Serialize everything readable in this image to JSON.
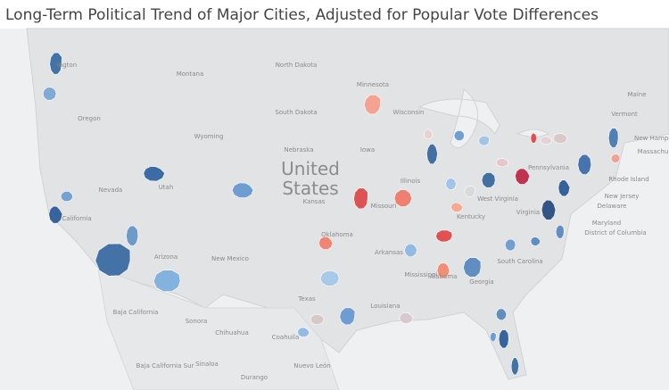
{
  "title": "Long-Term Political Trend of Major Cities, Adjusted for Popular Vote Differences",
  "country_label": "United States",
  "labels": [
    "ington",
    "Montana",
    "North Dakota",
    "South Dakota",
    "Minnesota",
    "Wisconsin",
    "Wyoming",
    "Nebraska",
    "Iowa",
    "Oregon",
    "Nevada",
    "Utah",
    "California",
    "Kansas",
    "Missouri",
    "Illinois",
    "Arizona",
    "New Mexico",
    "Oklahoma",
    "Arkansas",
    "Texas",
    "Mississippi",
    "Alabama",
    "Georgia",
    "Louisiana",
    "South Carolina",
    "Kentucky",
    "West Virginia",
    "Pennsylvania",
    "Virginia",
    "Vermont",
    "Maine",
    "New Hamps",
    "Massachu",
    "Rhode Island",
    "New Jersey",
    "Delaware",
    "Maryland",
    "District of Columbia",
    "Baja California",
    "Sonora",
    "Chihuahua",
    "Coahuila",
    "Nuevo León",
    "Sinaloa",
    "Durango",
    "Baja California Sur"
  ],
  "cities": [
    {
      "color": "#3a6ea5"
    },
    {
      "color": "#7aa7d6"
    },
    {
      "color": "#2e5e96"
    },
    {
      "color": "#6f9fd0"
    },
    {
      "color": "#3d6da3"
    },
    {
      "color": "#6897c9"
    },
    {
      "color": "#3565a0"
    },
    {
      "color": "#6a9ad0"
    },
    {
      "color": "#7fb0df"
    },
    {
      "color": "#f4a08c"
    },
    {
      "color": "#3b6aa0"
    },
    {
      "color": "#e6d2d2"
    },
    {
      "color": "#6b9ad0"
    },
    {
      "color": "#9ec4e8"
    },
    {
      "color": "#e04848"
    },
    {
      "color": "#e6d2d2"
    },
    {
      "color": "#d9c8c8"
    },
    {
      "color": "#4a7bb5"
    },
    {
      "color": "#f0a090"
    },
    {
      "color": "#c0294a"
    },
    {
      "color": "#e6c6c8"
    },
    {
      "color": "#3b6aa0"
    },
    {
      "color": "#d9d9d9"
    },
    {
      "color": "#9fc3e8"
    },
    {
      "color": "#f6a88f"
    },
    {
      "color": "#f07a6a"
    },
    {
      "color": "#dd4b4b"
    },
    {
      "color": "#3f6fac"
    },
    {
      "color": "#2d5c98"
    },
    {
      "color": "#2a4e80"
    },
    {
      "color": "#5a8ac0"
    },
    {
      "color": "#e04a4a"
    },
    {
      "color": "#8fb8e4"
    },
    {
      "color": "#f08070"
    },
    {
      "color": "#a6c8ea"
    },
    {
      "color": "#6a9ad0"
    },
    {
      "color": "#d8c8c8"
    },
    {
      "color": "#d8c8ce"
    },
    {
      "color": "#f28a70"
    },
    {
      "color": "#5a8ac0"
    },
    {
      "color": "#6c9cd2"
    },
    {
      "color": "#5a8ac0"
    },
    {
      "color": "#5a8ac0"
    },
    {
      "color": "#2e5e96"
    },
    {
      "color": "#6a9ad0"
    },
    {
      "color": "#3a6ea5"
    },
    {
      "color": "#8fb8e4"
    }
  ]
}
